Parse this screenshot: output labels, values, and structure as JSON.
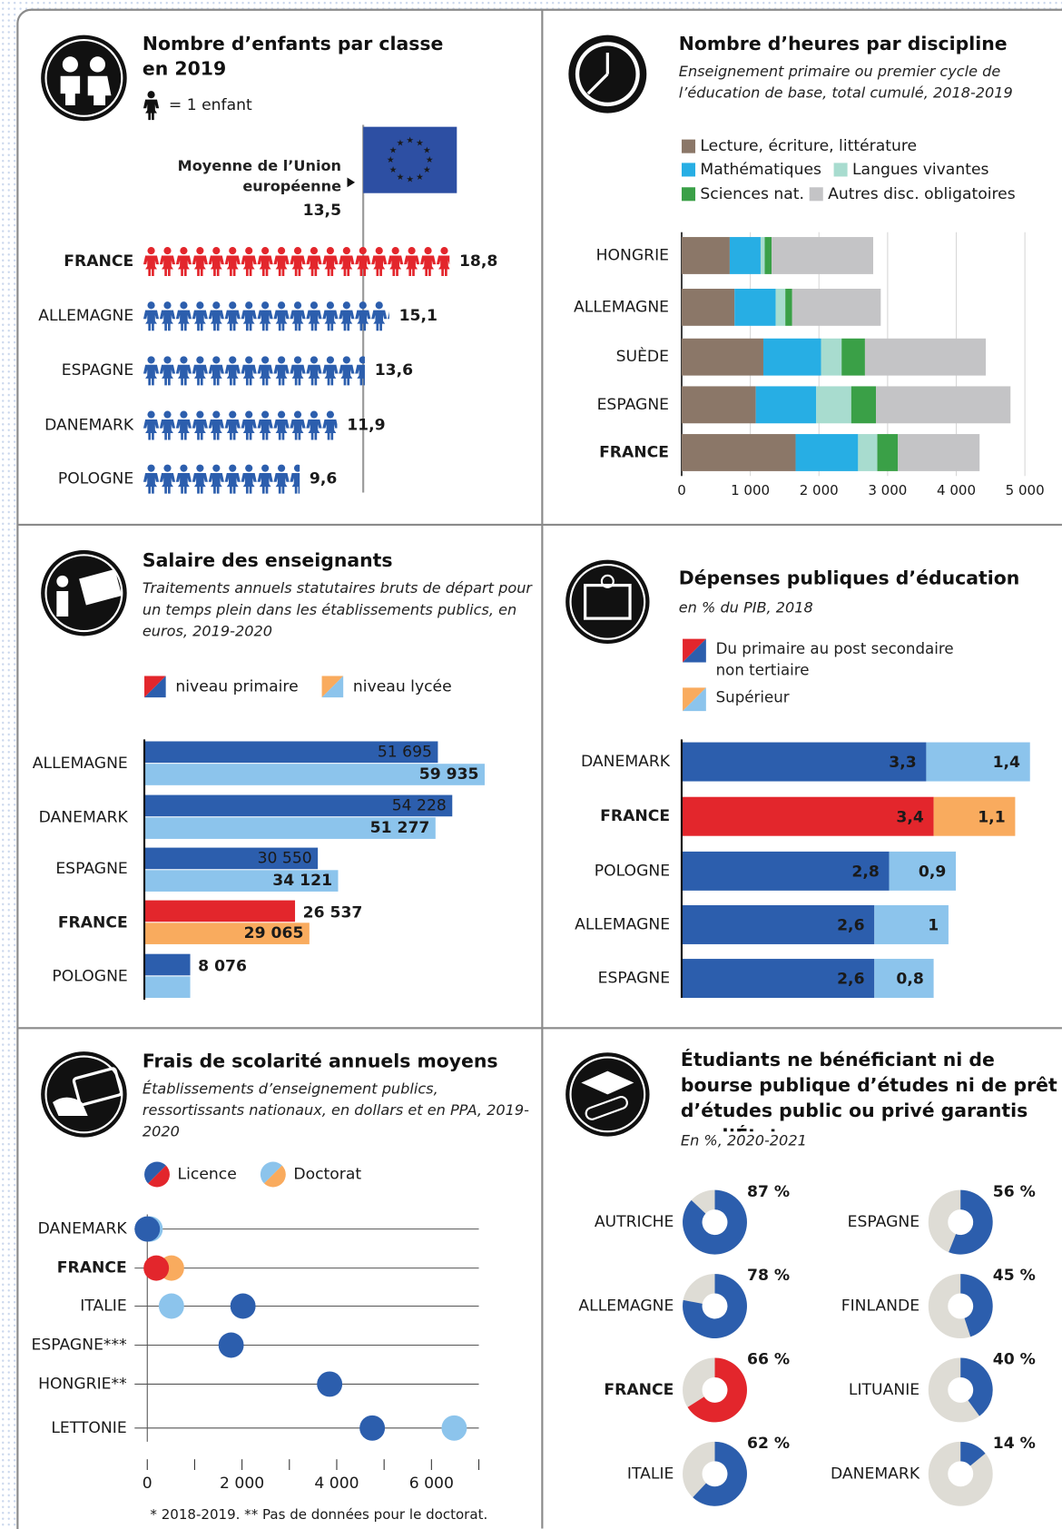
{
  "chart_data": [
    {
      "type": "pictogram",
      "title": "Nombre d’enfants par classe en 2019",
      "unit_label": "= 1 enfant",
      "eu_label": "Moyenne de l’Union européenne",
      "eu_average": 13.5,
      "eu_average_label": "13,5",
      "categories": [
        "FRANCE",
        "ALLEMAGNE",
        "ESPAGNE",
        "DANEMARK",
        "POLOGNE"
      ],
      "values": [
        18.8,
        15.1,
        13.6,
        11.9,
        9.6
      ],
      "value_labels": [
        "18,8",
        "15,1",
        "13,6",
        "11,9",
        "9,6"
      ],
      "color": "#2c5ead",
      "highlight": "FRANCE",
      "highlight_color": "#e3262c"
    },
    {
      "type": "stacked-bar",
      "title": "Nombre d’heures par discipline",
      "subtitle": "Enseignement primaire ou premier cycle de l’éducation de base, total cumulé, 2018-2019",
      "categories": [
        "HONGRIE",
        "ALLEMAGNE",
        "SUÈDE",
        "ESPAGNE",
        "FRANCE"
      ],
      "series": [
        {
          "name": "Lecture, écriture, littérature",
          "color": "#8b7768",
          "values": [
            700,
            770,
            1190,
            1080,
            1660
          ]
        },
        {
          "name": "Mathématiques",
          "color": "#27aee4",
          "values": [
            450,
            600,
            840,
            880,
            910
          ]
        },
        {
          "name": "Langues vivantes",
          "color": "#a8dccf",
          "values": [
            60,
            140,
            300,
            510,
            280
          ]
        },
        {
          "name": "Sciences nat.",
          "color": "#3aa047",
          "values": [
            100,
            100,
            340,
            360,
            300
          ]
        },
        {
          "name": "Autres disc. obligatoires",
          "color": "#c4c4c6",
          "values": [
            1480,
            1290,
            1760,
            1960,
            1190
          ]
        }
      ],
      "xlim": [
        0,
        5000
      ],
      "xticks": [
        0,
        {
          "value": 1000,
          "label": "1 000"
        },
        {
          "value": 2000,
          "label": "2 000"
        },
        {
          "value": 3000,
          "label": "3 000"
        },
        {
          "value": 4000,
          "label": "4 000"
        },
        {
          "value": 5000,
          "label": "5 000"
        }
      ],
      "grid": true,
      "highlight": "FRANCE",
      "highlight_color": "#e3262c"
    },
    {
      "type": "grouped-bar",
      "title": "Salaire des enseignants",
      "subtitle": "Traitements annuels statutaires bruts de départ pour un temps plein dans les établissements publics, en euros, 2019-2020",
      "categories": [
        "ALLEMAGNE",
        "DANEMARK",
        "ESPAGNE",
        "FRANCE",
        "POLOGNE"
      ],
      "series": [
        {
          "name": "niveau primaire",
          "color": "#2c5ead",
          "highlight_color": "#e3262c",
          "values": [
            51695,
            54228,
            30550,
            26537,
            8076
          ],
          "value_labels": [
            "51 695",
            "54 228",
            "30 550",
            "26 537",
            "8 076"
          ]
        },
        {
          "name": "niveau lycée",
          "color": "#8cc4ec",
          "highlight_color": "#f9ab5e",
          "values": [
            59935,
            51277,
            34121,
            29065,
            8076
          ],
          "value_labels": [
            "59 935",
            "51 277",
            "34 121",
            "29 065",
            null
          ]
        }
      ],
      "highlight": "FRANCE"
    },
    {
      "type": "stacked-bar-labeled",
      "title": "Dépenses publiques d’éducation",
      "subtitle": "en % du PIB, 2018",
      "categories": [
        "DANEMARK",
        "FRANCE",
        "POLOGNE",
        "ALLEMAGNE",
        "ESPAGNE"
      ],
      "series": [
        {
          "name": "Du primaire au post secondaire non tertiaire",
          "color": "#2c5ead",
          "highlight_color": "#e3262c",
          "values": [
            3.3,
            3.4,
            2.8,
            2.6,
            2.6
          ],
          "value_labels": [
            "3,3",
            "3,4",
            "2,8",
            "2,6",
            "2,6"
          ]
        },
        {
          "name": "Supérieur",
          "color": "#8cc4ec",
          "highlight_color": "#f9ab5e",
          "values": [
            1.4,
            1.1,
            0.9,
            1,
            0.8
          ],
          "value_labels": [
            "1,4",
            "1,1",
            "0,9",
            "1",
            "0,8"
          ]
        }
      ],
      "highlight": "FRANCE"
    },
    {
      "type": "dot",
      "title": "Frais de scolarité annuels moyens",
      "subtitle": "Établissements d’enseignement publics, ressortissants nationaux, en dollars et en PPA, 2019-2020",
      "categories": [
        "DANEMARK",
        "FRANCE",
        "ITALIE",
        "ESPAGNE***",
        "HONGRIE**",
        "LETTONIE"
      ],
      "series": [
        {
          "name": "Licence",
          "color": "#2c5ead",
          "highlight_color": "#e3262c",
          "values": [
            0,
            190,
            2020,
            1770,
            3850,
            4750
          ]
        },
        {
          "name": "Doctorat",
          "color": "#8cc4ec",
          "highlight_color": "#f9ab5e",
          "values": [
            60,
            510,
            510,
            null,
            null,
            6480
          ]
        }
      ],
      "xlim": [
        0,
        7000
      ],
      "xticks": [
        0,
        {
          "value": 2000,
          "label": "2 000"
        },
        {
          "value": 4000,
          "label": "4 000"
        },
        {
          "value": 6000,
          "label": "6 000"
        }
      ],
      "minor_xticks": [
        1000,
        3000,
        5000,
        7000
      ],
      "note": "* 2018-2019. ** Pas de données pour le doctorat.",
      "highlight": "FRANCE"
    },
    {
      "type": "donut",
      "title": "Étudiants ne bénéficiant ni de bourse publique d’études ni de prêt d’études public ou privé garantis par l’État",
      "subtitle": "En %, 2020-2021",
      "categories": [
        "AUTRICHE",
        "ALLEMAGNE",
        "FRANCE",
        "ITALIE",
        "ESPAGNE",
        "FINLANDE",
        "LITUANIE",
        "DANEMARK"
      ],
      "values": [
        87,
        78,
        66,
        62,
        56,
        45,
        40,
        14
      ],
      "value_labels": [
        "87 %",
        "78 %",
        "66 %",
        "62 %",
        "56 %",
        "45 %",
        "40 %",
        "14 %"
      ],
      "color": "#2c5ead",
      "rest_color": "#dedcd5",
      "highlight": "FRANCE",
      "highlight_color": "#e3262c"
    }
  ]
}
